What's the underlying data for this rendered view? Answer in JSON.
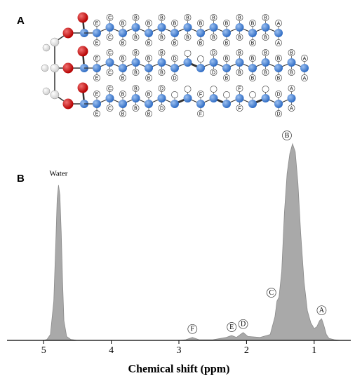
{
  "panel_a": {
    "label": "A",
    "chains": [
      [
        "E",
        "C",
        "B",
        "B",
        "B",
        "B",
        "B",
        "B",
        "B",
        "B",
        "B",
        "B",
        "B",
        "B",
        "A"
      ],
      [
        "E",
        "C",
        "B",
        "B",
        "B",
        "B",
        "D",
        null,
        null,
        "D",
        "B",
        "B",
        "B",
        "B",
        "B",
        "B",
        "A"
      ],
      [
        "E",
        "C",
        "B",
        "B",
        "B",
        "D",
        null,
        null,
        "F",
        null,
        null,
        "F",
        null,
        null,
        "D",
        "A"
      ]
    ]
  },
  "chart_data": {
    "type": "area",
    "panel_label": "B",
    "xlabel": "Chemical shift (ppm)",
    "x": [
      5.4,
      5.0,
      4.95,
      4.9,
      4.85,
      4.82,
      4.8,
      4.78,
      4.76,
      4.74,
      4.72,
      4.7,
      4.66,
      4.6,
      4.5,
      3.0,
      2.9,
      2.8,
      2.7,
      2.5,
      2.3,
      2.22,
      2.15,
      2.05,
      1.98,
      1.8,
      1.65,
      1.58,
      1.55,
      1.52,
      1.48,
      1.44,
      1.4,
      1.36,
      1.32,
      1.28,
      1.24,
      1.2,
      1.15,
      1.1,
      1.05,
      1.0,
      0.96,
      0.92,
      0.89,
      0.86,
      0.82,
      0.78,
      0.7,
      0.6
    ],
    "values": [
      0,
      0,
      0.5,
      3,
      20,
      50,
      72,
      79,
      74,
      55,
      30,
      10,
      2,
      0.5,
      0,
      0,
      0.3,
      1.5,
      0.3,
      0.3,
      1.5,
      2.5,
      1.5,
      4,
      2,
      1.5,
      3,
      12,
      20,
      22,
      35,
      65,
      85,
      95,
      100,
      96,
      80,
      55,
      30,
      15,
      9,
      6,
      7,
      10,
      11,
      8,
      3,
      1,
      0.3,
      0
    ],
    "color": "#a9a9a9",
    "xlim": [
      5.5,
      0.5
    ],
    "xticks": [
      5,
      4,
      3,
      2,
      1
    ],
    "ylim": [
      0,
      100
    ],
    "annotations": [
      {
        "text": "Water",
        "x": 4.78
      },
      {
        "text": "B",
        "x": 1.32
      },
      {
        "text": "C",
        "x": 1.55
      },
      {
        "text": "A",
        "x": 0.89
      },
      {
        "text": "D",
        "x": 2.05
      },
      {
        "text": "E",
        "x": 2.22
      },
      {
        "text": "F",
        "x": 2.8
      }
    ]
  }
}
